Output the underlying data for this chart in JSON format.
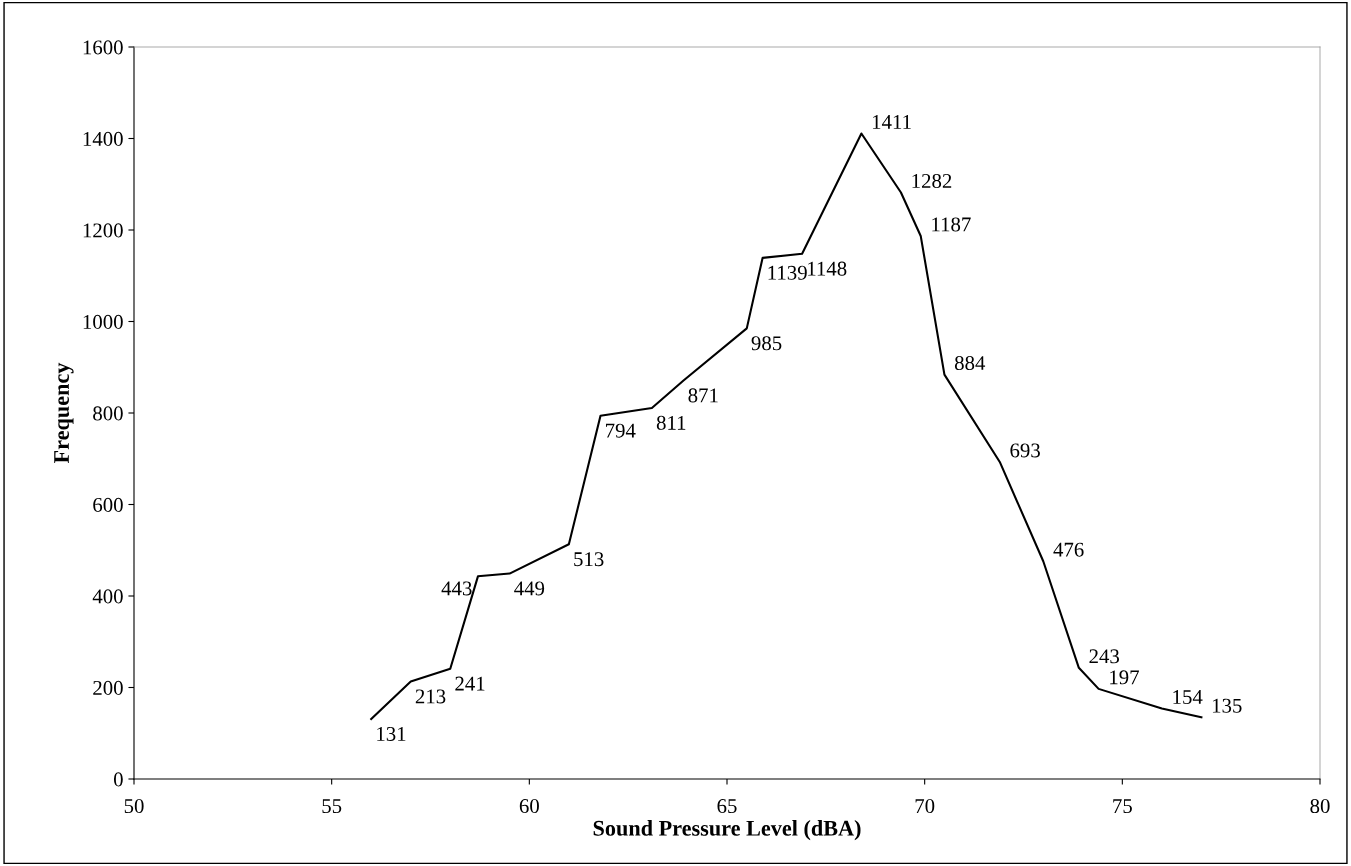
{
  "chart_data": {
    "type": "line",
    "xlabel": "Sound Pressure Level (dBA)",
    "ylabel": "Frequency",
    "x": [
      56.0,
      57.0,
      58.0,
      58.7,
      59.5,
      61.0,
      61.8,
      63.1,
      63.9,
      65.5,
      65.9,
      66.9,
      68.4,
      69.4,
      69.9,
      70.5,
      71.9,
      73.0,
      73.9,
      74.4,
      76.0,
      77.0
    ],
    "series": [
      {
        "color": "#000000",
        "values": [
          131,
          213,
          241,
          443,
          449,
          513,
          794,
          811,
          871,
          985,
          1139,
          1148,
          1411,
          1282,
          1187,
          884,
          693,
          476,
          243,
          197,
          154,
          135
        ]
      }
    ],
    "xlim": [
      50,
      80
    ],
    "xticks": [
      50,
      55,
      60,
      65,
      70,
      75,
      80
    ],
    "ylim": [
      0,
      1600
    ],
    "yticks": [
      0,
      200,
      400,
      600,
      800,
      1000,
      1200,
      1400,
      1600
    ],
    "data_labels": true,
    "grid": false,
    "marker": "none",
    "line_style": "solid"
  }
}
